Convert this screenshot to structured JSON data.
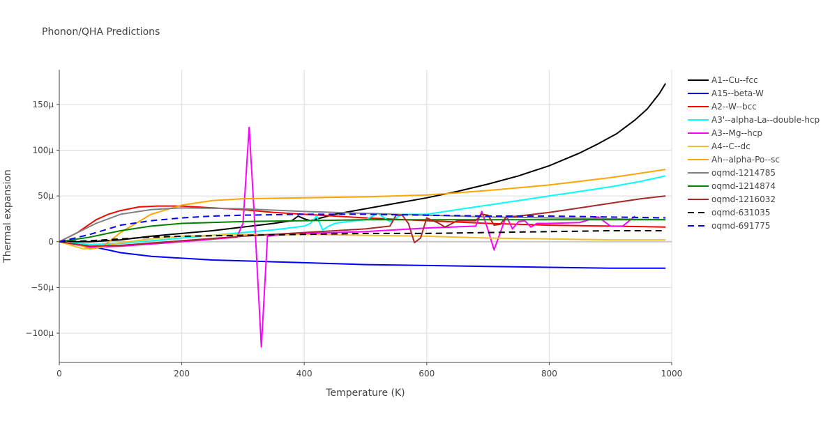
{
  "chart_data": {
    "type": "line",
    "title": "Phonon/QHA Predictions",
    "xlabel": "Temperature (K)",
    "ylabel": "Thermal expansion",
    "xlim": [
      0,
      1000
    ],
    "ylim": [
      -132,
      188
    ],
    "grid": true,
    "legend_position": "right",
    "x_ticks": [
      0,
      200,
      400,
      600,
      800,
      1000
    ],
    "x_tick_labels": [
      "0",
      "200",
      "400",
      "600",
      "800",
      "1000"
    ],
    "y_ticks": [
      -100,
      -50,
      0,
      50,
      100,
      150
    ],
    "y_tick_labels": [
      "−100μ",
      "−50μ",
      "0",
      "50μ",
      "100μ",
      "150μ"
    ],
    "y_unit_note": "values in units of 1e-6 (μ)",
    "series": [
      {
        "name": "A1--Cu--fcc",
        "color": "#000000",
        "dash": "solid",
        "x": [
          0,
          50,
          100,
          150,
          200,
          250,
          300,
          350,
          380,
          390,
          400,
          410,
          450,
          500,
          550,
          600,
          650,
          700,
          750,
          800,
          850,
          880,
          910,
          940,
          960,
          980,
          990
        ],
        "y": [
          0,
          0,
          2,
          6,
          9,
          12,
          16,
          20,
          23,
          28,
          25,
          23,
          30,
          36,
          42,
          48,
          55,
          63,
          72,
          83,
          97,
          107,
          118,
          133,
          145,
          162,
          173
        ]
      },
      {
        "name": "A15--beta-W",
        "color": "#0000ff",
        "dash": "solid",
        "x": [
          0,
          30,
          50,
          80,
          100,
          150,
          200,
          250,
          300,
          350,
          400,
          450,
          500,
          600,
          700,
          800,
          900,
          990
        ],
        "y": [
          0,
          -2,
          -5,
          -9,
          -12,
          -16,
          -18,
          -20,
          -21,
          -22,
          -23,
          -24,
          -25,
          -26,
          -27,
          -28,
          -29,
          -29
        ]
      },
      {
        "name": "A2--W--bcc",
        "color": "#ff0000",
        "dash": "solid",
        "x": [
          0,
          30,
          60,
          80,
          100,
          130,
          160,
          200,
          250,
          300,
          350,
          400,
          500,
          600,
          700,
          800,
          900,
          990
        ],
        "y": [
          0,
          10,
          24,
          30,
          34,
          38,
          39,
          39,
          37,
          35,
          32,
          30,
          26,
          23,
          20,
          18,
          17,
          16
        ]
      },
      {
        "name": "A3'--alpha-La--double-hcp",
        "color": "#00ffff",
        "dash": "solid",
        "x": [
          0,
          50,
          100,
          200,
          300,
          350,
          400,
          410,
          420,
          430,
          440,
          450,
          470,
          500,
          520,
          540,
          560,
          600,
          650,
          700,
          750,
          800,
          850,
          900,
          950,
          990
        ],
        "y": [
          0,
          -3,
          -2,
          4,
          10,
          13,
          17,
          20,
          28,
          13,
          17,
          20,
          22,
          24,
          31,
          22,
          30,
          30,
          35,
          40,
          45,
          50,
          55,
          60,
          66,
          72
        ]
      },
      {
        "name": "A3--Mg--hcp",
        "color": "#ff00ff",
        "dash": "solid",
        "x": [
          0,
          50,
          100,
          200,
          290,
          300,
          310,
          320,
          330,
          340,
          350,
          400,
          500,
          600,
          680,
          690,
          700,
          710,
          720,
          730,
          740,
          750,
          760,
          770,
          780,
          800,
          850,
          880,
          900,
          920,
          940
        ],
        "y": [
          0,
          -6,
          -5,
          0,
          5,
          20,
          125,
          10,
          -115,
          6,
          7,
          9,
          11,
          15,
          17,
          33,
          13,
          -9,
          10,
          28,
          14,
          22,
          23,
          16,
          20,
          20,
          21,
          27,
          17,
          17,
          28
        ]
      },
      {
        "name": "A4--C--dc",
        "color": "#f0c030",
        "dash": "solid",
        "x": [
          0,
          20,
          40,
          60,
          80,
          100,
          150,
          200,
          300,
          400,
          500,
          600,
          700,
          800,
          900,
          990
        ],
        "y": [
          0,
          -4,
          -8,
          -7,
          -4,
          -1,
          3,
          6,
          8,
          8,
          7,
          6,
          4,
          3,
          2,
          2
        ]
      },
      {
        "name": "Ah--alpha-Po--sc",
        "color": "#ffa500",
        "dash": "solid",
        "x": [
          0,
          30,
          50,
          70,
          100,
          150,
          200,
          250,
          300,
          400,
          500,
          600,
          700,
          800,
          900,
          990
        ],
        "y": [
          0,
          -3,
          -8,
          -6,
          10,
          30,
          40,
          45,
          47,
          48,
          49,
          51,
          56,
          62,
          70,
          79
        ]
      },
      {
        "name": "oqmd-1214785",
        "color": "#808080",
        "dash": "solid",
        "x": [
          0,
          30,
          60,
          100,
          150,
          200,
          300,
          400,
          500,
          600,
          700,
          800,
          900,
          990
        ],
        "y": [
          0,
          10,
          20,
          30,
          35,
          37,
          36,
          33,
          31,
          29,
          27,
          26,
          25,
          24
        ]
      },
      {
        "name": "oqmd-1214874",
        "color": "#008000",
        "dash": "solid",
        "x": [
          0,
          50,
          100,
          150,
          200,
          300,
          400,
          500,
          600,
          700,
          800,
          900,
          990
        ],
        "y": [
          0,
          5,
          12,
          17,
          20,
          22,
          23,
          24,
          24,
          24,
          24,
          24,
          24
        ]
      },
      {
        "name": "oqmd-1216032",
        "color": "#a52a2a",
        "dash": "solid",
        "x": [
          0,
          50,
          100,
          200,
          300,
          400,
          500,
          540,
          550,
          560,
          570,
          580,
          590,
          600,
          620,
          630,
          650,
          680,
          690,
          700,
          710,
          720,
          730,
          750,
          800,
          850,
          900,
          950,
          990
        ],
        "y": [
          0,
          -5,
          -4,
          1,
          6,
          10,
          14,
          17,
          29,
          29,
          20,
          -1,
          4,
          26,
          20,
          16,
          23,
          23,
          30,
          29,
          18,
          19,
          27,
          28,
          32,
          37,
          42,
          47,
          50
        ]
      },
      {
        "name": "oqmd-631035",
        "color": "#000000",
        "dash": "dash",
        "x": [
          0,
          50,
          100,
          150,
          200,
          300,
          400,
          500,
          600,
          700,
          800,
          900,
          990
        ],
        "y": [
          0,
          1,
          3,
          5,
          6,
          7,
          8,
          9,
          9,
          10,
          11,
          12,
          12
        ]
      },
      {
        "name": "oqmd-691775",
        "color": "#0000ff",
        "dash": "dash",
        "x": [
          0,
          50,
          100,
          150,
          200,
          250,
          300,
          400,
          500,
          600,
          700,
          800,
          900,
          990
        ],
        "y": [
          0,
          8,
          18,
          23,
          26,
          28,
          29,
          30,
          30,
          29,
          28,
          28,
          27,
          26
        ]
      }
    ]
  }
}
